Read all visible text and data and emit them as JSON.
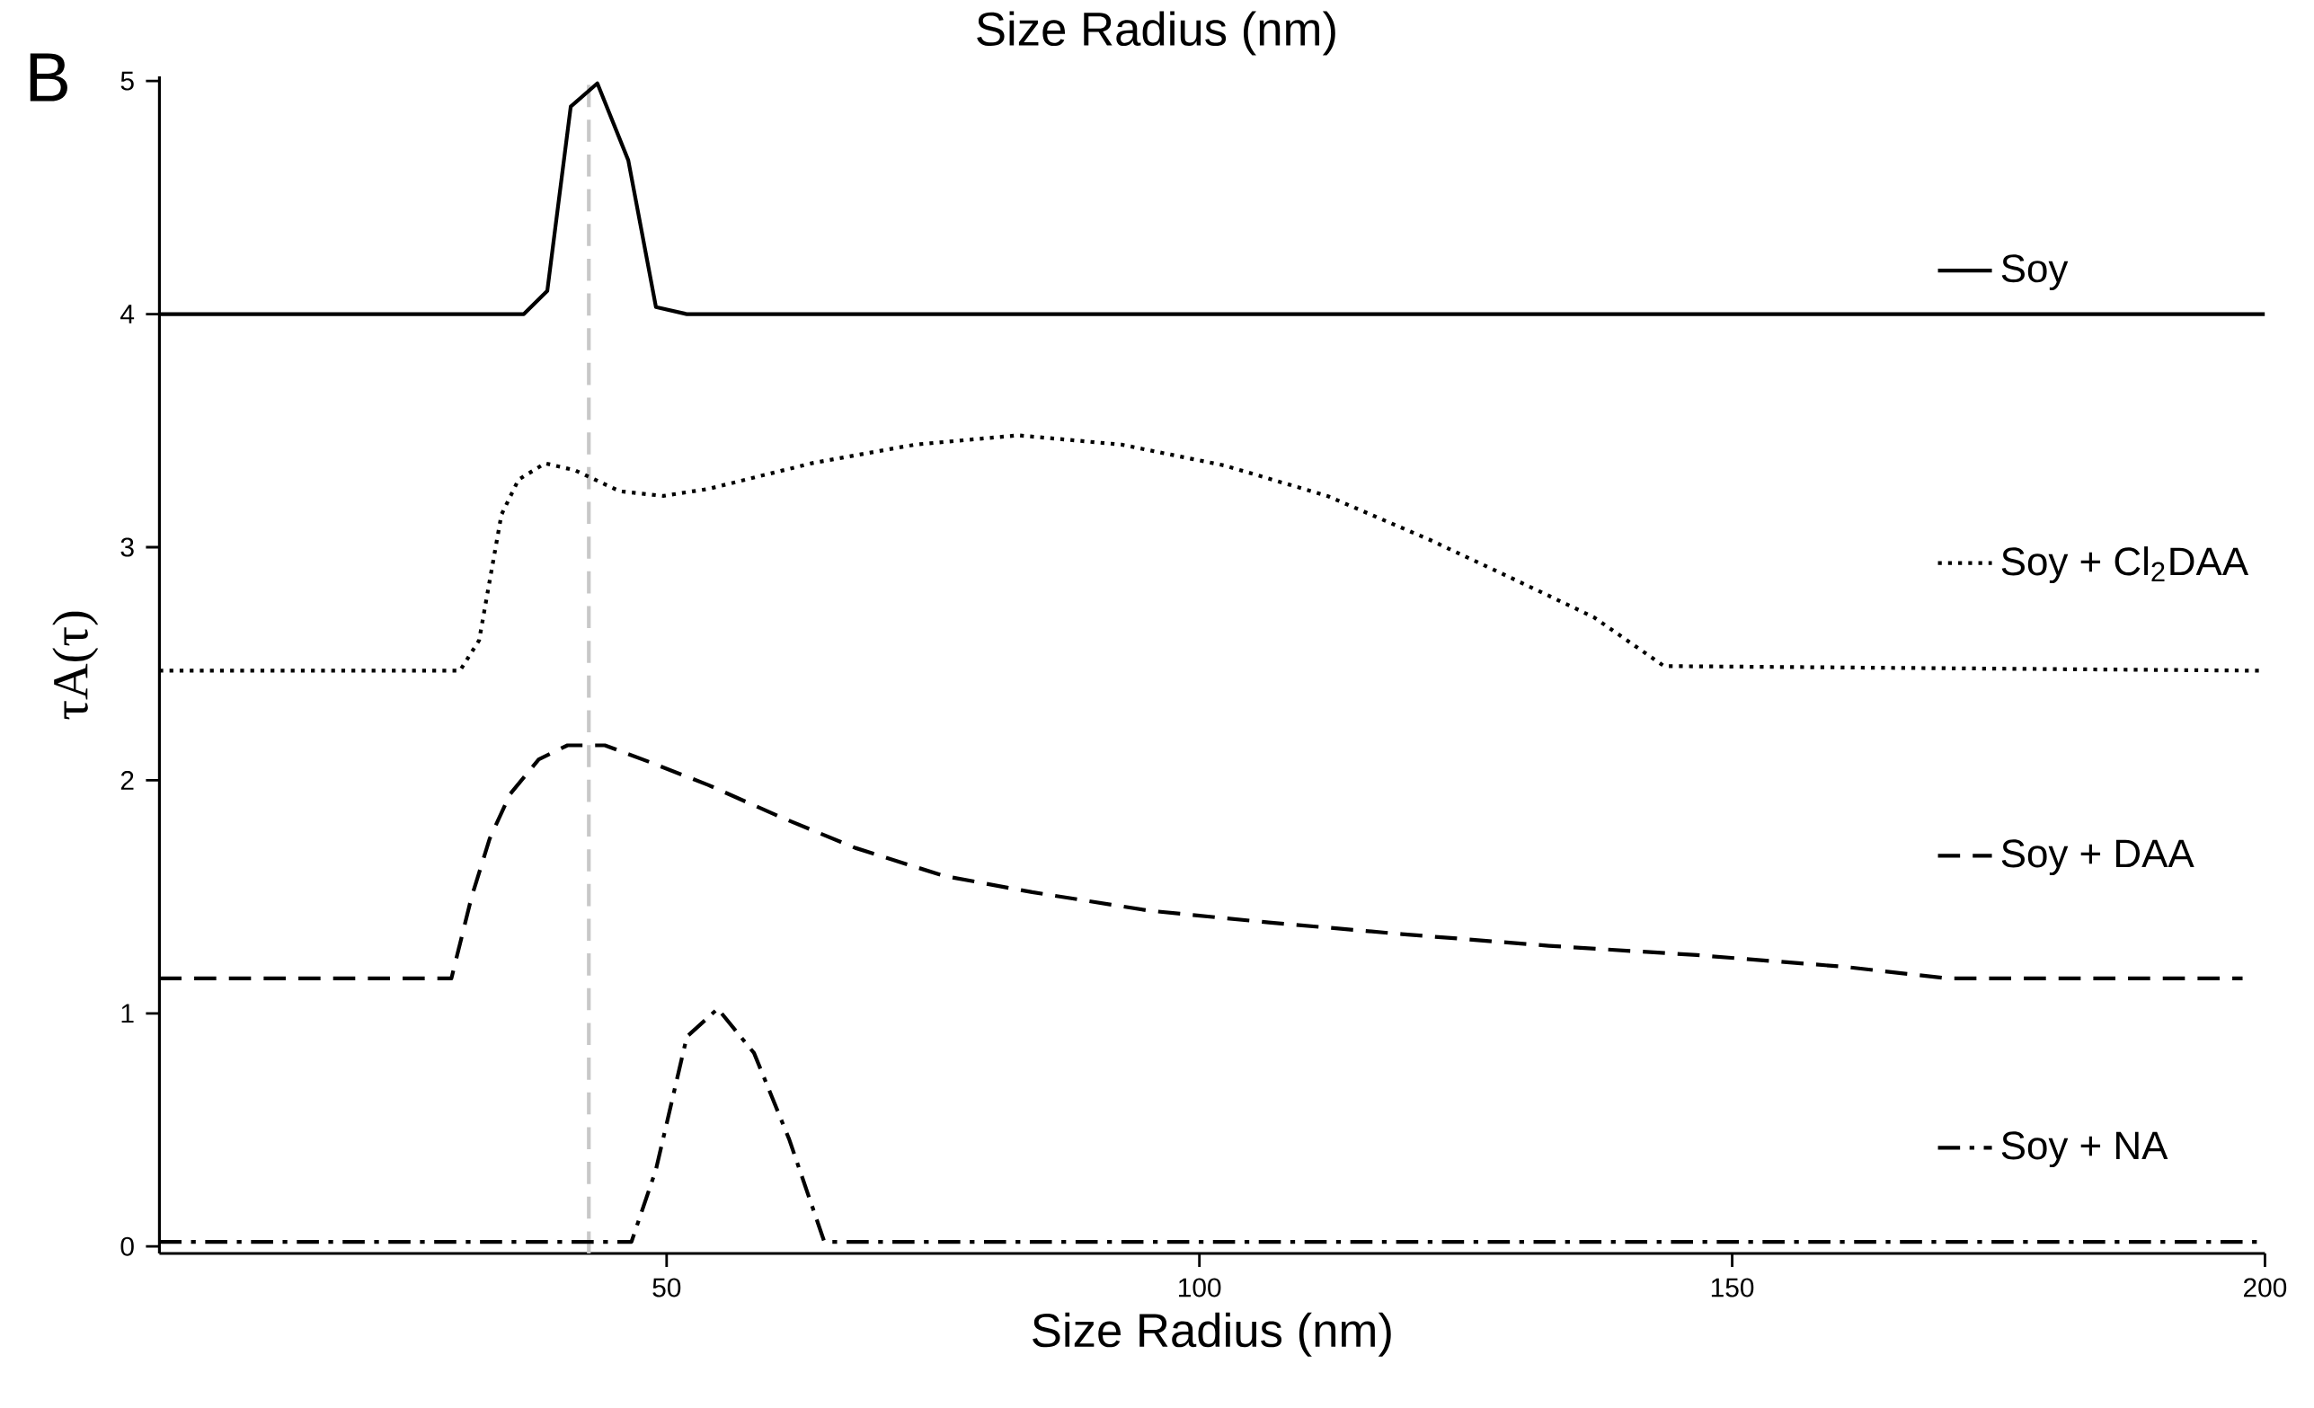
{
  "chart_data": {
    "type": "line",
    "xlabel": "Size Radius (nm)",
    "ylabel": "τA(τ)",
    "annotations": [
      "Size Radius (nm)",
      "B"
    ],
    "xlim": [
      2.4,
      200
    ],
    "ylim": [
      -0.03,
      5.02
    ],
    "xticks": [
      50,
      100,
      150,
      200
    ],
    "yticks": [
      0,
      1,
      2,
      3,
      4,
      5
    ],
    "legend": "right",
    "grid": false,
    "marker": "none",
    "ref_lines": [
      {
        "axis": "x",
        "value": 42.7,
        "color": "#c8c8c8",
        "line_style": "dashed"
      }
    ],
    "series": [
      {
        "name": "Soy",
        "color": "#000000",
        "line_style": "solid",
        "x": [
          2.4,
          36.6,
          38.8,
          41.0,
          43.5,
          46.4,
          49.0,
          51.9,
          200
        ],
        "values": [
          4.0,
          4.0,
          4.1,
          4.89,
          4.99,
          4.66,
          4.03,
          4.0,
          4.0
        ]
      },
      {
        "name": "Soy + Cl$_{2}$DAA",
        "color": "#000000",
        "line_style": "dotted",
        "x": [
          2.4,
          30.6,
          32.4,
          34.5,
          36.1,
          38.6,
          41.4,
          45.6,
          49.7,
          53.9,
          63.6,
          73.3,
          83.0,
          92.7,
          102.4,
          112.0,
          121.7,
          130.1,
          137.0,
          143.6,
          200
        ],
        "values": [
          2.47,
          2.47,
          2.6,
          3.14,
          3.29,
          3.36,
          3.33,
          3.24,
          3.22,
          3.25,
          3.36,
          3.44,
          3.48,
          3.44,
          3.35,
          3.22,
          3.03,
          2.85,
          2.7,
          2.49,
          2.47
        ]
      },
      {
        "name": "Soy + DAA",
        "color": "#000000",
        "line_style": "dashed",
        "x": [
          2.4,
          29.8,
          31.7,
          33.4,
          35.3,
          38.0,
          40.7,
          44.2,
          48.3,
          53.9,
          60.8,
          67.7,
          76.0,
          84.3,
          95.4,
          106.5,
          119.0,
          132.8,
          146.7,
          160.5,
          170.2,
          197.9
        ],
        "values": [
          1.15,
          1.15,
          1.5,
          1.75,
          1.94,
          2.09,
          2.15,
          2.15,
          2.08,
          1.98,
          1.84,
          1.71,
          1.59,
          1.52,
          1.44,
          1.39,
          1.34,
          1.29,
          1.25,
          1.2,
          1.15,
          1.15
        ]
      },
      {
        "name": "Soy + NA",
        "color": "#000000",
        "line_style": "dashdot",
        "x": [
          2.4,
          46.7,
          49.0,
          51.9,
          54.8,
          58.2,
          61.5,
          64.8,
          200
        ],
        "values": [
          0.02,
          0.02,
          0.33,
          0.9,
          1.02,
          0.83,
          0.46,
          0.02,
          0.02
        ]
      }
    ]
  }
}
